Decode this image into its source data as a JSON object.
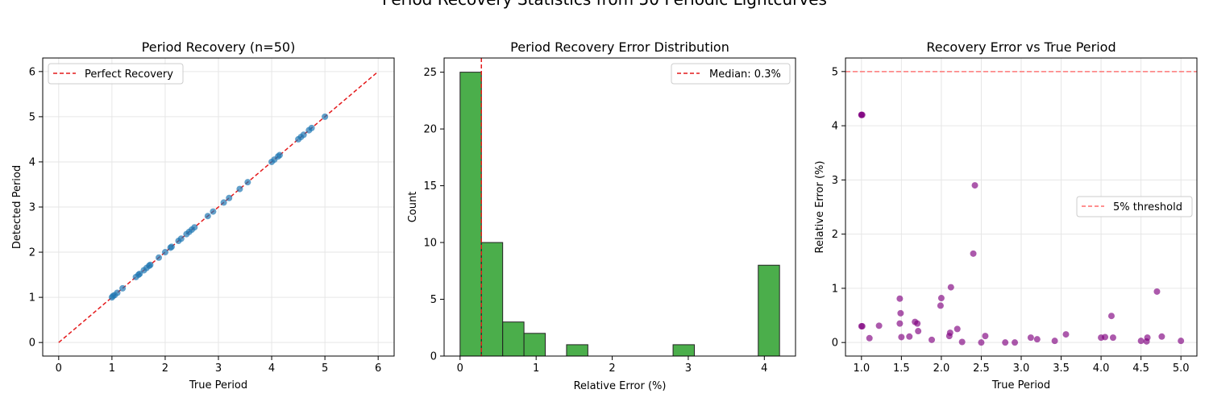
{
  "figure": {
    "suptitle": "Period Recovery Statistics from 50 Periodic Lightcurves"
  },
  "chart_data": [
    {
      "type": "scatter",
      "title": "Period Recovery (n=50)",
      "xlabel": "True Period",
      "ylabel": "Detected Period",
      "xlim": [
        -0.3,
        6.3
      ],
      "ylim": [
        -0.3,
        6.3
      ],
      "xticks": [
        "0",
        "1",
        "2",
        "3",
        "4",
        "5",
        "6"
      ],
      "yticks": [
        "0",
        "1",
        "2",
        "3",
        "4",
        "5",
        "6"
      ],
      "grid": true,
      "legend_position": "top-left",
      "reference_line": {
        "name": "Perfect Recovery",
        "x": [
          0,
          6
        ],
        "y": [
          0,
          6
        ],
        "color": "#e41a1c",
        "style": "dashed"
      },
      "series": [
        {
          "marker_color": "#1f77b4",
          "x": [
            1.0,
            1.02,
            1.05,
            1.1,
            1.2,
            1.45,
            1.5,
            1.52,
            1.6,
            1.65,
            1.7,
            1.72,
            1.88,
            2.0,
            2.1,
            2.12,
            2.25,
            2.3,
            2.4,
            2.45,
            2.5,
            2.55,
            2.8,
            2.9,
            3.1,
            3.2,
            3.4,
            3.55,
            4.0,
            4.05,
            4.12,
            4.15,
            4.5,
            4.55,
            4.6,
            4.7,
            4.75,
            5.0
          ],
          "y": [
            1.0,
            1.03,
            1.05,
            1.1,
            1.2,
            1.45,
            1.5,
            1.52,
            1.6,
            1.65,
            1.7,
            1.72,
            1.88,
            2.0,
            2.1,
            2.12,
            2.25,
            2.3,
            2.4,
            2.45,
            2.5,
            2.55,
            2.8,
            2.9,
            3.1,
            3.2,
            3.4,
            3.55,
            4.0,
            4.05,
            4.12,
            4.15,
            4.5,
            4.55,
            4.6,
            4.7,
            4.75,
            5.0
          ]
        }
      ]
    },
    {
      "type": "bar",
      "title": "Period Recovery Error Distribution",
      "xlabel": "Relative Error (%)",
      "ylabel": "Count",
      "xlim": [
        -0.21,
        4.41
      ],
      "ylim": [
        0,
        26.25
      ],
      "xticks": [
        "0",
        "1",
        "2",
        "3",
        "4"
      ],
      "yticks": [
        "0",
        "5",
        "10",
        "15",
        "20",
        "25"
      ],
      "grid": false,
      "legend_position": "top-right",
      "bar_color": "#2ca02c",
      "bin_edges": [
        0.0,
        0.28,
        0.56,
        0.84,
        1.12,
        1.4,
        1.68,
        1.96,
        2.24,
        2.52,
        2.8,
        3.08,
        3.36,
        3.64,
        3.92,
        4.2
      ],
      "values": [
        25,
        10,
        3,
        2,
        0,
        1,
        0,
        0,
        0,
        0,
        1,
        0,
        0,
        0,
        8
      ],
      "reference_line": {
        "name": "Median: 0.3%",
        "x": 0.28,
        "color": "#e41a1c",
        "style": "dashed"
      }
    },
    {
      "type": "scatter",
      "title": "Recovery Error vs True Period",
      "xlabel": "True Period",
      "ylabel": "Relative Error (%)",
      "xlim": [
        0.8,
        5.2
      ],
      "ylim": [
        -0.25,
        5.25
      ],
      "xticks": [
        "1.0",
        "1.5",
        "2.0",
        "2.5",
        "3.0",
        "3.5",
        "4.0",
        "4.5",
        "5.0"
      ],
      "yticks": [
        "0",
        "1",
        "2",
        "3",
        "4",
        "5"
      ],
      "grid": true,
      "legend_position": "center-right",
      "reference_line": {
        "name": "5% threshold",
        "y": 5,
        "color": "#ff6b6b",
        "style": "dashed"
      },
      "series": [
        {
          "marker_color": "#800080",
          "x": [
            1.0,
            1.0,
            1.01,
            1.0,
            1.01,
            1.1,
            1.22,
            1.48,
            1.48,
            1.49,
            1.5,
            1.6,
            1.67,
            1.7,
            1.71,
            1.88,
            1.99,
            2.0,
            2.1,
            2.11,
            2.12,
            2.2,
            2.26,
            2.4,
            2.42,
            2.5,
            2.55,
            2.8,
            2.92,
            3.12,
            3.2,
            3.42,
            3.56,
            4.0,
            4.05,
            4.13,
            4.15,
            4.5,
            4.57,
            4.58,
            4.7,
            4.76,
            5.0
          ],
          "y": [
            4.2,
            4.2,
            4.2,
            0.3,
            0.3,
            0.08,
            0.31,
            0.81,
            0.35,
            0.54,
            0.1,
            0.11,
            0.38,
            0.35,
            0.21,
            0.05,
            0.68,
            0.82,
            0.12,
            0.18,
            1.02,
            0.25,
            0.01,
            1.64,
            2.9,
            0.0,
            0.12,
            0.0,
            0.0,
            0.09,
            0.06,
            0.03,
            0.15,
            0.09,
            0.1,
            0.49,
            0.09,
            0.03,
            0.02,
            0.09,
            0.94,
            0.11,
            0.03
          ]
        }
      ]
    }
  ]
}
